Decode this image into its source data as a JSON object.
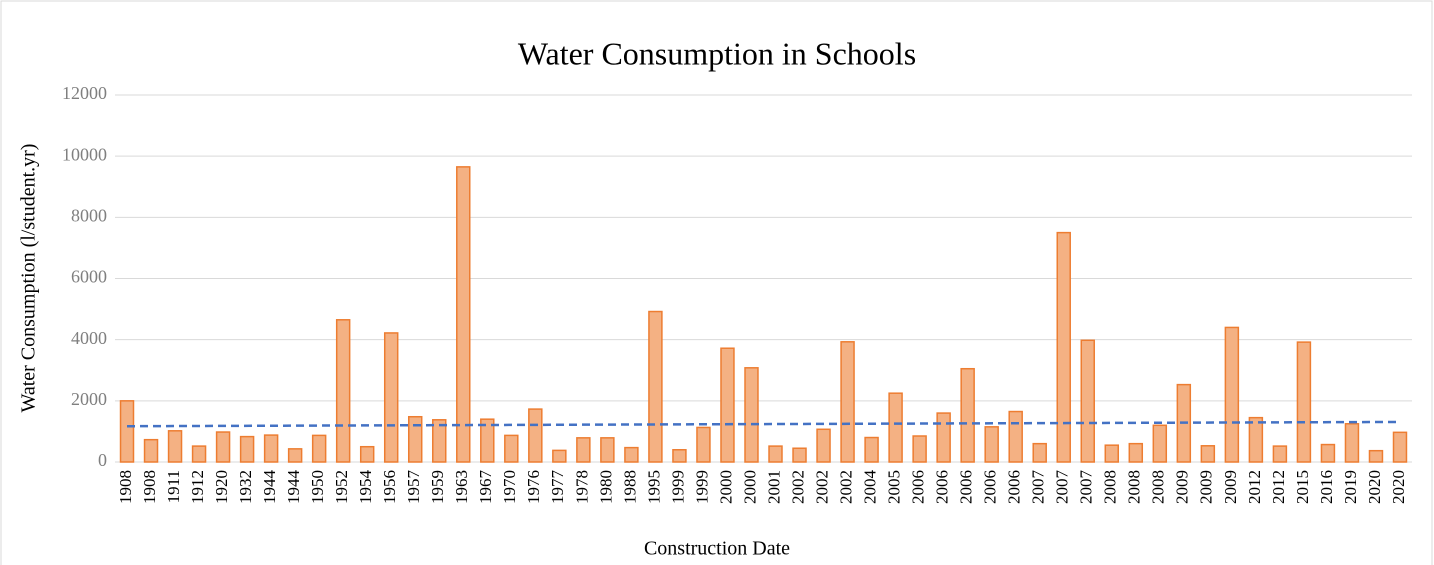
{
  "chart_data": {
    "type": "bar",
    "title": "Water Consumption in Schools",
    "x_label": "Construction Date",
    "y_label": "Water Consumption (l/student.yr)",
    "categories": [
      "1908",
      "1908",
      "1911",
      "1912",
      "1920",
      "1932",
      "1944",
      "1944",
      "1950",
      "1952",
      "1954",
      "1956",
      "1957",
      "1959",
      "1963",
      "1967",
      "1970",
      "1976",
      "1977",
      "1978",
      "1980",
      "1988",
      "1995",
      "1999",
      "1999",
      "2000",
      "2000",
      "2001",
      "2002",
      "2002",
      "2002",
      "2004",
      "2005",
      "2006",
      "2006",
      "2006",
      "2006",
      "2006",
      "2007",
      "2007",
      "2007",
      "2008",
      "2008",
      "2008",
      "2009",
      "2009",
      "2009",
      "2012",
      "2012",
      "2015",
      "2016",
      "2019",
      "2020",
      "2020"
    ],
    "values": [
      2000,
      730,
      1020,
      520,
      980,
      830,
      880,
      430,
      870,
      4650,
      500,
      4220,
      1480,
      1380,
      9650,
      1400,
      870,
      1730,
      380,
      790,
      790,
      470,
      4920,
      400,
      1130,
      3720,
      3080,
      520,
      450,
      1070,
      3930,
      800,
      2250,
      850,
      1600,
      3050,
      1150,
      1650,
      600,
      7500,
      3980,
      550,
      600,
      1200,
      2530,
      530,
      4400,
      1450,
      520,
      3920,
      570,
      1250,
      370,
      970
    ],
    "color": "#f4b183",
    "edge_color": "#ed7d31",
    "trendline": {
      "values": [
        1170,
        1310
      ],
      "color": "#4472c4",
      "dashed": true
    },
    "ylim": [
      0,
      12000
    ],
    "yticks": [
      0,
      2000,
      4000,
      6000,
      8000,
      10000,
      12000
    ],
    "grid": true
  }
}
